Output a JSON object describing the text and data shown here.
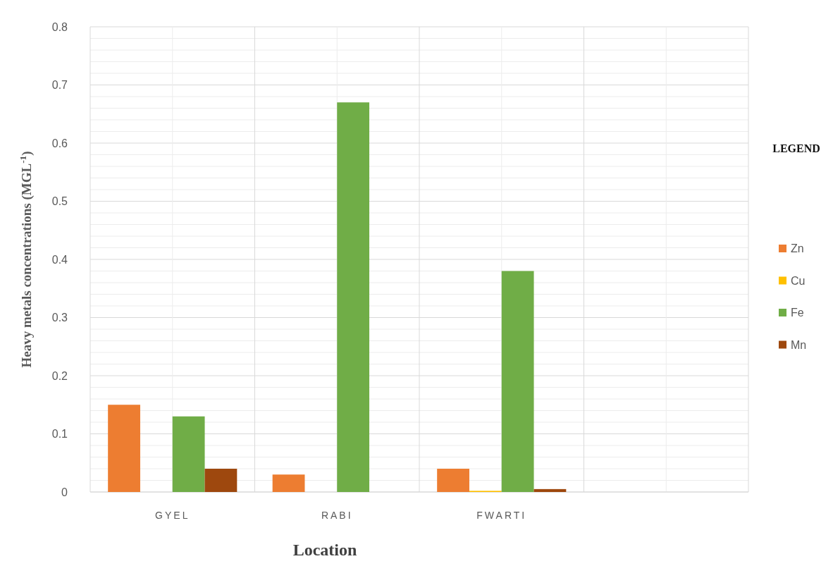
{
  "chart_data": {
    "type": "bar",
    "ylabel": "Heavy metals concentrations (MGL$^{-1}$)",
    "xlabel": "Location",
    "legend_title": "LEGEND",
    "legend": "right",
    "grid": true,
    "categories": [
      "GYEL",
      "RABI",
      "FWARTI",
      null
    ],
    "series": [
      {
        "name": "Zn",
        "color": "#ed7d31",
        "values": [
          0.15,
          0.03,
          0.04,
          null
        ]
      },
      {
        "name": "Cu",
        "color": "#ffc000",
        "values": [
          0,
          0,
          0.002,
          null
        ]
      },
      {
        "name": "Fe",
        "color": "#70ad47",
        "values": [
          0.13,
          0.67,
          0.38,
          null
        ]
      },
      {
        "name": "Mn",
        "color": "#9e480e",
        "values": [
          0.04,
          0,
          0.005,
          null
        ]
      }
    ],
    "ylim": [
      0,
      0.8
    ],
    "yticks": [
      0,
      {
        "value": 0.02,
        "label": null
      },
      {
        "value": 0.04,
        "label": null
      },
      {
        "value": 0.06,
        "label": null
      },
      {
        "value": 0.08,
        "label": null
      },
      0.1,
      {
        "value": 0.12,
        "label": null
      },
      {
        "value": 0.14,
        "label": null
      },
      {
        "value": 0.16,
        "label": null
      },
      {
        "value": 0.18,
        "label": null
      },
      0.2,
      {
        "value": 0.22,
        "label": null
      },
      {
        "value": 0.24,
        "label": null
      },
      {
        "value": 0.26,
        "label": null
      },
      {
        "value": 0.28,
        "label": null
      },
      0.3,
      {
        "value": 0.32,
        "label": null
      },
      {
        "value": 0.34,
        "label": null
      },
      {
        "value": 0.36,
        "label": null
      },
      {
        "value": 0.38,
        "label": null
      },
      0.4,
      {
        "value": 0.42,
        "label": null
      },
      {
        "value": 0.44,
        "label": null
      },
      {
        "value": 0.46,
        "label": null
      },
      {
        "value": 0.48,
        "label": null
      },
      0.5,
      {
        "value": 0.52,
        "label": null
      },
      {
        "value": 0.54,
        "label": null
      },
      {
        "value": 0.56,
        "label": null
      },
      {
        "value": 0.58,
        "label": null
      },
      0.6,
      {
        "value": 0.62,
        "label": null
      },
      {
        "value": 0.64,
        "label": null
      },
      {
        "value": 0.66,
        "label": null
      },
      {
        "value": 0.68,
        "label": null
      },
      0.7,
      {
        "value": 0.72,
        "label": null
      },
      {
        "value": 0.74,
        "label": null
      },
      {
        "value": 0.76,
        "label": null
      },
      {
        "value": 0.78,
        "label": null
      },
      0.8
    ]
  }
}
